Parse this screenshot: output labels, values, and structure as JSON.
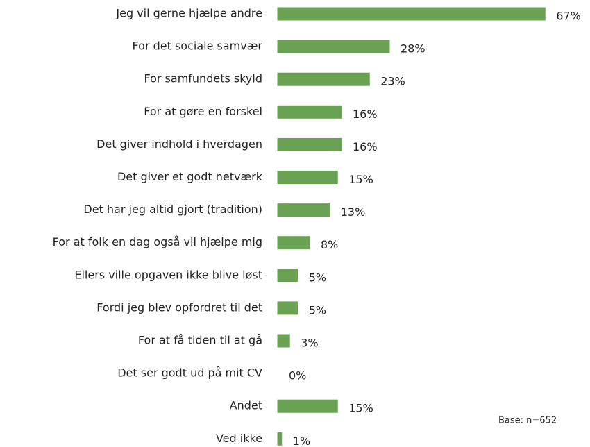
{
  "chart_data": {
    "type": "hbar",
    "categories": [
      "Jeg vil gerne hjælpe andre",
      "For det sociale samvær",
      "For samfundets skyld",
      "For at gøre en forskel",
      "Det giver indhold i hverdagen",
      "Det giver et godt netværk",
      "Det har jeg altid gjort (tradition)",
      "For at folk en dag også vil hjælpe mig",
      "Ellers ville opgaven ikke blive løst",
      "Fordi jeg blev opfordret til det",
      "For at få tiden til at gå",
      "Det ser godt ud på mit CV",
      "Andet",
      "Ved ikke"
    ],
    "values": [
      67,
      28,
      23,
      16,
      16,
      15,
      13,
      8,
      5,
      5,
      3,
      0,
      15,
      1
    ],
    "value_labels": [
      "67%",
      "28%",
      "23%",
      "16%",
      "16%",
      "15%",
      "13%",
      "8%",
      "5%",
      "5%",
      "3%",
      "0%",
      "15%",
      "1%"
    ],
    "color": "#6aa253",
    "annotation": "Base: n=652"
  }
}
